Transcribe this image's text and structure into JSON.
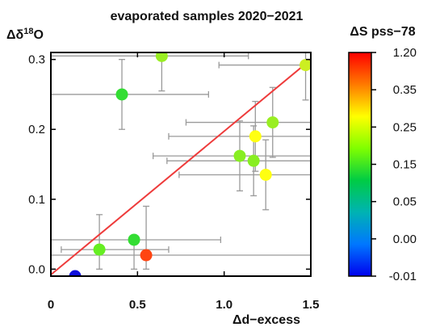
{
  "chart_data": {
    "type": "scatter",
    "title": "evaporated samples 2020−2021",
    "xlabel": "Δd−excess",
    "ylabel_prefix": "Δδ",
    "ylabel_sup": "18",
    "ylabel_suffix": "O",
    "xlim": [
      0,
      1.5
    ],
    "ylim": [
      -0.01,
      0.31
    ],
    "xticks": [
      "0",
      "0.5",
      "1.0",
      "1.5"
    ],
    "xtick_values": [
      0,
      0.5,
      1.0,
      1.5
    ],
    "yticks": [
      "0.0",
      "0.1",
      "0.2",
      "0.3"
    ],
    "ytick_values": [
      0.0,
      0.1,
      0.2,
      0.3
    ],
    "grid": false,
    "regression_line": {
      "x": [
        0,
        1.5
      ],
      "y": [
        -0.008,
        0.3
      ],
      "color": "#ee3b3b"
    },
    "colorbar": {
      "title": "ΔS pss−78",
      "labels": [
        "1.20",
        "0.35",
        "0.25",
        "0.15",
        "0.05",
        "0.00",
        "-0.01"
      ],
      "colors": [
        "#ff0000",
        "#ff7a00",
        "#ffff00",
        "#7fff00",
        "#00cc44",
        "#00b3b3",
        "#0077ff",
        "#0000ee"
      ]
    },
    "points": [
      {
        "x": 0.14,
        "y": -0.01,
        "xerr": [
          0.02,
          0.02
        ],
        "yerr": [
          0,
          0
        ],
        "color": "#1010dd"
      },
      {
        "x": 0.28,
        "y": 0.028,
        "xerr": [
          0.22,
          0.4
        ],
        "yerr": [
          0.028,
          0.05
        ],
        "color": "#66ee22"
      },
      {
        "x": 0.48,
        "y": 0.042,
        "xerr": [
          0.48,
          0.5
        ],
        "yerr": [
          0.042,
          0.0
        ],
        "color": "#33dd33"
      },
      {
        "x": 0.55,
        "y": 0.02,
        "xerr": [
          0.55,
          1.0
        ],
        "yerr": [
          0.02,
          0.07
        ],
        "color": "#ff4411"
      },
      {
        "x": 0.41,
        "y": 0.25,
        "xerr": [
          0.41,
          0.5
        ],
        "yerr": [
          0.05,
          0.05
        ],
        "color": "#33dd33"
      },
      {
        "x": 0.64,
        "y": 0.305,
        "xerr": [
          0.64,
          0.5
        ],
        "yerr": [
          0.05,
          0.0
        ],
        "color": "#99ee22"
      },
      {
        "x": 1.47,
        "y": 0.292,
        "xerr": [
          0.5,
          0.03
        ],
        "yerr": [
          0.05,
          0.02
        ],
        "color": "#ccee22"
      },
      {
        "x": 1.28,
        "y": 0.21,
        "xerr": [
          0.5,
          0.22
        ],
        "yerr": [
          0.05,
          0.05
        ],
        "color": "#99ee22"
      },
      {
        "x": 1.18,
        "y": 0.19,
        "xerr": [
          0.5,
          0.32
        ],
        "yerr": [
          0.05,
          0.05
        ],
        "color": "#ffff11"
      },
      {
        "x": 1.09,
        "y": 0.162,
        "xerr": [
          0.5,
          0.41
        ],
        "yerr": [
          0.05,
          0.05
        ],
        "color": "#88ee22"
      },
      {
        "x": 1.17,
        "y": 0.155,
        "xerr": [
          0.5,
          0.33
        ],
        "yerr": [
          0.05,
          0.05
        ],
        "color": "#88ee22"
      },
      {
        "x": 1.24,
        "y": 0.135,
        "xerr": [
          0.5,
          0.26
        ],
        "yerr": [
          0.05,
          0.05
        ],
        "color": "#ffff11"
      }
    ]
  }
}
